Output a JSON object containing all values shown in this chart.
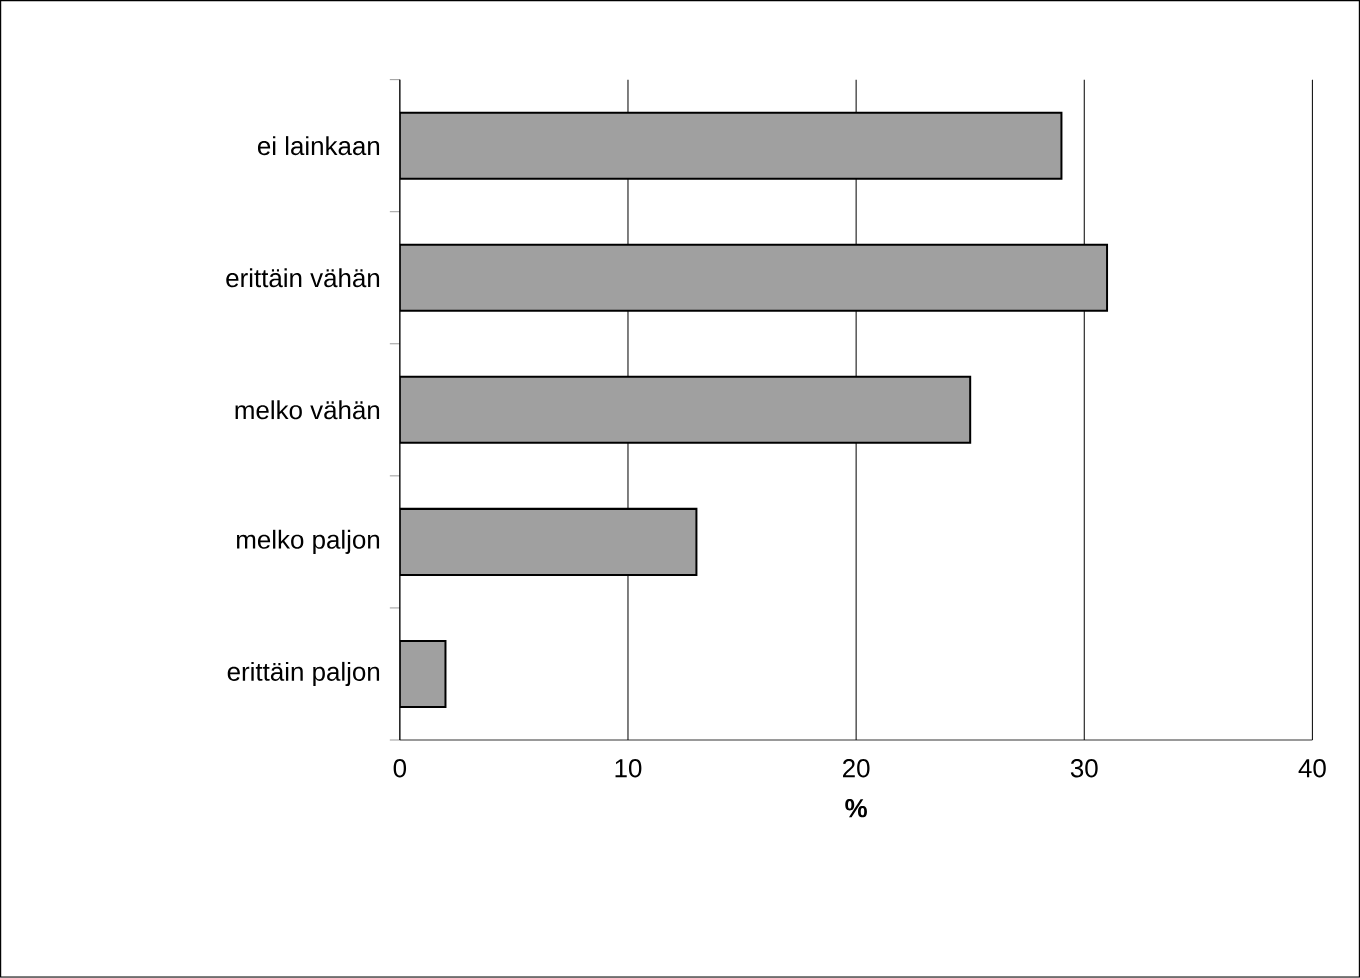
{
  "chart_data": {
    "type": "bar",
    "orientation": "horizontal",
    "xlabel": "%",
    "categories": [
      "ei lainkaan",
      "erittäin vähän",
      "melko vähän",
      "melko paljon",
      "erittäin paljon"
    ],
    "values": [
      29,
      31,
      25,
      13,
      2
    ],
    "color": "#a0a0a0",
    "xlim": [
      0,
      40
    ],
    "xticks": [
      0,
      10,
      20,
      30,
      40
    ],
    "grid": "x"
  }
}
